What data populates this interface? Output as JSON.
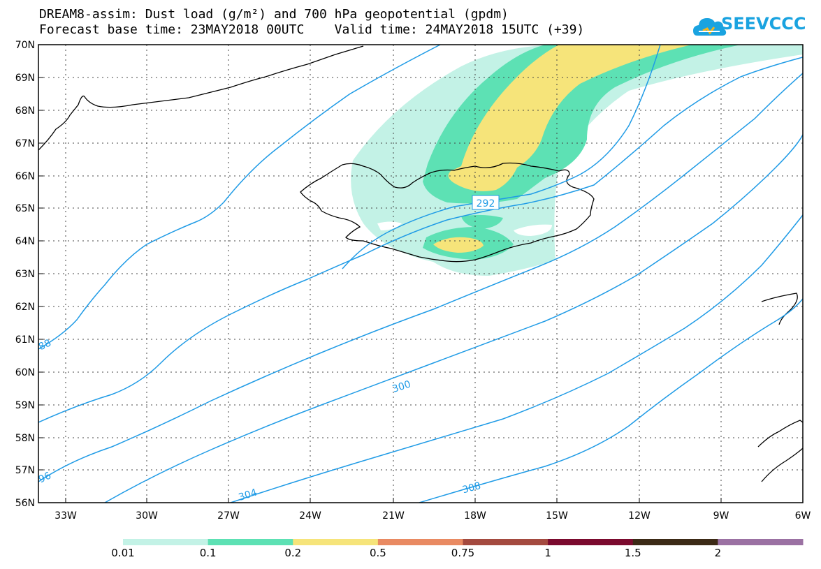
{
  "title": {
    "line1": "DREAM8-assim: Dust load (g/m²) and 700 hPa geopotential (gpdm)",
    "line2": "Forecast base time: 23MAY2018 00UTC    Valid time: 24MAY2018 15UTC (+39)"
  },
  "logo": {
    "text": "SEEVCCC",
    "color": "#1aa3e0"
  },
  "map": {
    "lat_labels": [
      "70N",
      "69N",
      "68N",
      "67N",
      "66N",
      "65N",
      "64N",
      "63N",
      "62N",
      "61N",
      "60N",
      "59N",
      "58N",
      "57N",
      "56N"
    ],
    "lon_labels": [
      "33W",
      "30W",
      "27W",
      "24W",
      "21W",
      "18W",
      "15W",
      "12W",
      "9W",
      "6W"
    ],
    "contour_labels": [
      "292",
      "300",
      "304",
      "308",
      "88",
      "96"
    ],
    "contour_color": "#1f9be6"
  },
  "colorbar": {
    "labels": [
      "0.01",
      "0.1",
      "0.2",
      "0.5",
      "0.75",
      "1",
      "1.5",
      "2"
    ],
    "colors": [
      "#c3f2e6",
      "#5de1b4",
      "#f6e47a",
      "#e98a62",
      "#a44a3f",
      "#7b0a2e",
      "#3c2a16",
      "#9b71a3"
    ]
  }
}
